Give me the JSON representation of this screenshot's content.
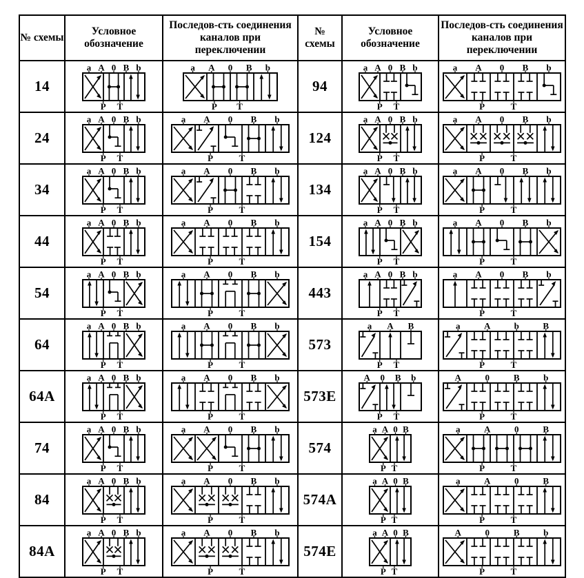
{
  "header": {
    "no": "№ схемы",
    "symbol": "Условное обозначение",
    "sequence": "Последов-сть соединения каналов при переключении"
  },
  "colors": {
    "border": "#000000",
    "text": "#000000",
    "background": "#ffffff",
    "line": "#000000"
  },
  "port_top_default": [
    "a",
    "A",
    "0",
    "B",
    "b"
  ],
  "port_bottom_default": [
    "P",
    "T"
  ],
  "rows": [
    {
      "left": {
        "id": "14",
        "symbol": {
          "top": [
            "a",
            "A",
            "0",
            "B",
            "b"
          ],
          "bottom": [
            "P",
            "T"
          ],
          "sections": [
            "x",
            "dot",
            "ud"
          ]
        },
        "sequence": {
          "top": [
            "a",
            "A",
            "0",
            "B",
            "b"
          ],
          "bottom": [
            "P",
            "T"
          ],
          "sections": [
            "x",
            "dot",
            "dot",
            "ud"
          ]
        }
      },
      "right": {
        "id": "94",
        "symbol": {
          "top": [
            "a",
            "A",
            "0",
            "B",
            "b"
          ],
          "bottom": [
            "P",
            "T"
          ],
          "sections": [
            "x",
            "tt",
            "el"
          ]
        },
        "sequence": {
          "top": [
            "a",
            "A",
            "0",
            "B",
            "b"
          ],
          "bottom": [
            "P",
            "T"
          ],
          "sections": [
            "x",
            "tt",
            "tt",
            "tt",
            "el"
          ]
        }
      }
    },
    {
      "left": {
        "id": "24",
        "symbol": {
          "top": [
            "a",
            "A",
            "0",
            "B",
            "b"
          ],
          "bottom": [
            "P",
            "T"
          ],
          "sections": [
            "x",
            "el",
            "ud"
          ]
        },
        "sequence": {
          "top": [
            "a",
            "A",
            "0",
            "B",
            "b"
          ],
          "bottom": [
            "P",
            "T"
          ],
          "sections": [
            "x",
            "dg",
            "el",
            "dot",
            "ud"
          ]
        }
      },
      "right": {
        "id": "124",
        "symbol": {
          "top": [
            "a",
            "A",
            "0",
            "B",
            "b"
          ],
          "bottom": [
            "P",
            "T"
          ],
          "sections": [
            "x",
            "th",
            "ud"
          ]
        },
        "sequence": {
          "top": [
            "a",
            "A",
            "0",
            "B",
            "b"
          ],
          "bottom": [
            "P",
            "T"
          ],
          "sections": [
            "x",
            "th",
            "th",
            "th",
            "ud"
          ]
        }
      }
    },
    {
      "left": {
        "id": "34",
        "symbol": {
          "top": [
            "a",
            "A",
            "0",
            "B",
            "b"
          ],
          "bottom": [
            "P",
            "T"
          ],
          "sections": [
            "x",
            "el",
            "ud"
          ]
        },
        "sequence": {
          "top": [
            "a",
            "A",
            "0",
            "B",
            "b"
          ],
          "bottom": [
            "P",
            "T"
          ],
          "sections": [
            "x",
            "dg",
            "dot",
            "tt",
            "ud"
          ]
        }
      },
      "right": {
        "id": "134",
        "symbol": {
          "top": [
            "a",
            "A",
            "0",
            "B",
            "b"
          ],
          "bottom": [
            "P",
            "T"
          ],
          "sections": [
            "x",
            "td",
            "ud"
          ]
        },
        "sequence": {
          "top": [
            "a",
            "A",
            "0",
            "B",
            "b"
          ],
          "bottom": [
            "P",
            "T"
          ],
          "sections": [
            "x",
            "dot",
            "td",
            "ud",
            "ud"
          ]
        }
      }
    },
    {
      "left": {
        "id": "44",
        "symbol": {
          "top": [
            "a",
            "A",
            "0",
            "B",
            "b"
          ],
          "bottom": [
            "P",
            "T"
          ],
          "sections": [
            "x",
            "tt",
            "ud"
          ]
        },
        "sequence": {
          "top": [
            "a",
            "A",
            "0",
            "B",
            "b"
          ],
          "bottom": [
            "P",
            "T"
          ],
          "sections": [
            "x",
            "tt",
            "tt",
            "tt",
            "ud"
          ]
        }
      },
      "right": {
        "id": "154",
        "symbol": {
          "top": [
            "a",
            "A",
            "0",
            "B",
            "b"
          ],
          "bottom": [
            "P",
            "T"
          ],
          "sections": [
            "ud",
            "el",
            "x"
          ]
        },
        "sequence": {
          "top": [
            "a",
            "A",
            "0",
            "B",
            "b"
          ],
          "bottom": [
            "P",
            "T"
          ],
          "sections": [
            "ud",
            "dot",
            "el",
            "dot",
            "x"
          ]
        }
      }
    },
    {
      "left": {
        "id": "54",
        "symbol": {
          "top": [
            "a",
            "A",
            "0",
            "B",
            "b"
          ],
          "bottom": [
            "P",
            "T"
          ],
          "sections": [
            "ud",
            "el",
            "x"
          ]
        },
        "sequence": {
          "top": [
            "a",
            "A",
            "0",
            "B",
            "b"
          ],
          "bottom": [
            "P",
            "T"
          ],
          "sections": [
            "ud",
            "dot",
            "br",
            "dot",
            "x"
          ]
        }
      },
      "right": {
        "id": "443",
        "symbol": {
          "top": [
            "a",
            "A",
            "0",
            "B",
            "b"
          ],
          "bottom": [
            "P",
            "T"
          ],
          "sections": [
            "au",
            "tt",
            "dg"
          ]
        },
        "sequence": {
          "top": [
            "a",
            "A",
            "0",
            "B",
            "b"
          ],
          "bottom": [
            "P",
            "T"
          ],
          "sections": [
            "au",
            "tt",
            "tt",
            "tt",
            "dg"
          ]
        }
      }
    },
    {
      "left": {
        "id": "64",
        "symbol": {
          "top": [
            "a",
            "A",
            "0",
            "B",
            "b"
          ],
          "bottom": [
            "P",
            "T"
          ],
          "sections": [
            "ud",
            "br",
            "x"
          ]
        },
        "sequence": {
          "top": [
            "a",
            "A",
            "0",
            "B",
            "b"
          ],
          "bottom": [
            "P",
            "T"
          ],
          "sections": [
            "ud",
            "dot",
            "br",
            "dot",
            "x"
          ]
        }
      },
      "right": {
        "id": "573",
        "symbol": {
          "top": [
            "a",
            "A",
            "B"
          ],
          "bottom": [
            "P",
            "T"
          ],
          "sections": [
            "dg",
            "au",
            "t"
          ]
        },
        "sequence": {
          "top": [
            "a",
            "A",
            "b",
            "B"
          ],
          "bottom": [
            "P",
            "T"
          ],
          "sections": [
            "dg",
            "tt",
            "tt",
            "tt",
            "ud"
          ]
        }
      }
    },
    {
      "left": {
        "id": "64A",
        "symbol": {
          "top": [
            "a",
            "A",
            "0",
            "B",
            "b"
          ],
          "bottom": [
            "P",
            "T"
          ],
          "sections": [
            "ud",
            "br",
            "x"
          ]
        },
        "sequence": {
          "top": [
            "a",
            "A",
            "0",
            "B",
            "b"
          ],
          "bottom": [
            "P",
            "T"
          ],
          "sections": [
            "ud",
            "tt",
            "br",
            "tt",
            "x"
          ]
        }
      },
      "right": {
        "id": "573Е",
        "symbol": {
          "top": [
            "A",
            "0",
            "B",
            "b"
          ],
          "bottom": [
            "P",
            "T"
          ],
          "sections": [
            "dg",
            "ud",
            "t"
          ]
        },
        "sequence": {
          "top": [
            "A",
            "0",
            "B",
            "b"
          ],
          "bottom": [
            "P",
            "T"
          ],
          "sections": [
            "dg",
            "tt",
            "tt",
            "tt",
            "ud"
          ]
        }
      }
    },
    {
      "left": {
        "id": "74",
        "symbol": {
          "top": [
            "a",
            "A",
            "0",
            "B",
            "b"
          ],
          "bottom": [
            "P",
            "T"
          ],
          "sections": [
            "x",
            "el",
            "ud"
          ]
        },
        "sequence": {
          "top": [
            "a",
            "A",
            "0",
            "B",
            "b"
          ],
          "bottom": [
            "P",
            "T"
          ],
          "sections": [
            "x",
            "x",
            "el",
            "dot",
            "ud"
          ]
        }
      },
      "right": {
        "id": "574",
        "symbol": {
          "top": [
            "a",
            "A",
            "0",
            "B"
          ],
          "bottom": [
            "P",
            "T"
          ],
          "sections": [
            "x",
            "ud"
          ]
        },
        "sequence": {
          "top": [
            "a",
            "A",
            "0",
            "B"
          ],
          "bottom": [
            "P",
            "T"
          ],
          "sections": [
            "x",
            "dot",
            "dot",
            "dot",
            "ud"
          ]
        }
      }
    },
    {
      "left": {
        "id": "84",
        "symbol": {
          "top": [
            "a",
            "A",
            "0",
            "B",
            "b"
          ],
          "bottom": [
            "P",
            "T"
          ],
          "sections": [
            "x",
            "th",
            "ud"
          ]
        },
        "sequence": {
          "top": [
            "a",
            "A",
            "0",
            "B",
            "b"
          ],
          "bottom": [
            "P",
            "T"
          ],
          "sections": [
            "x",
            "th",
            "th",
            "tt",
            "ud"
          ]
        }
      },
      "right": {
        "id": "574А",
        "symbol": {
          "top": [
            "a",
            "A",
            "0",
            "B"
          ],
          "bottom": [
            "P",
            "T"
          ],
          "sections": [
            "x",
            "ud"
          ]
        },
        "sequence": {
          "top": [
            "a",
            "A",
            "0",
            "B"
          ],
          "bottom": [
            "P",
            "T"
          ],
          "sections": [
            "x",
            "tt",
            "tt",
            "tt",
            "ud"
          ]
        }
      }
    },
    {
      "left": {
        "id": "84A",
        "symbol": {
          "top": [
            "a",
            "A",
            "0",
            "B",
            "b"
          ],
          "bottom": [
            "P",
            "T"
          ],
          "sections": [
            "x",
            "th",
            "ud"
          ]
        },
        "sequence": {
          "top": [
            "a",
            "A",
            "0",
            "B",
            "b"
          ],
          "bottom": [
            "P",
            "T"
          ],
          "sections": [
            "x",
            "th",
            "th",
            "tt",
            "ud"
          ]
        }
      },
      "right": {
        "id": "574Е",
        "symbol": {
          "top": [
            "a",
            "A",
            "0",
            "B"
          ],
          "bottom": [
            "P",
            "T"
          ],
          "sections": [
            "x",
            "ud"
          ]
        },
        "sequence": {
          "top": [
            "A",
            "0",
            "B",
            "b"
          ],
          "bottom": [
            "P",
            "T"
          ],
          "sections": [
            "x",
            "tt",
            "tt",
            "tt",
            "ud"
          ]
        }
      }
    }
  ]
}
